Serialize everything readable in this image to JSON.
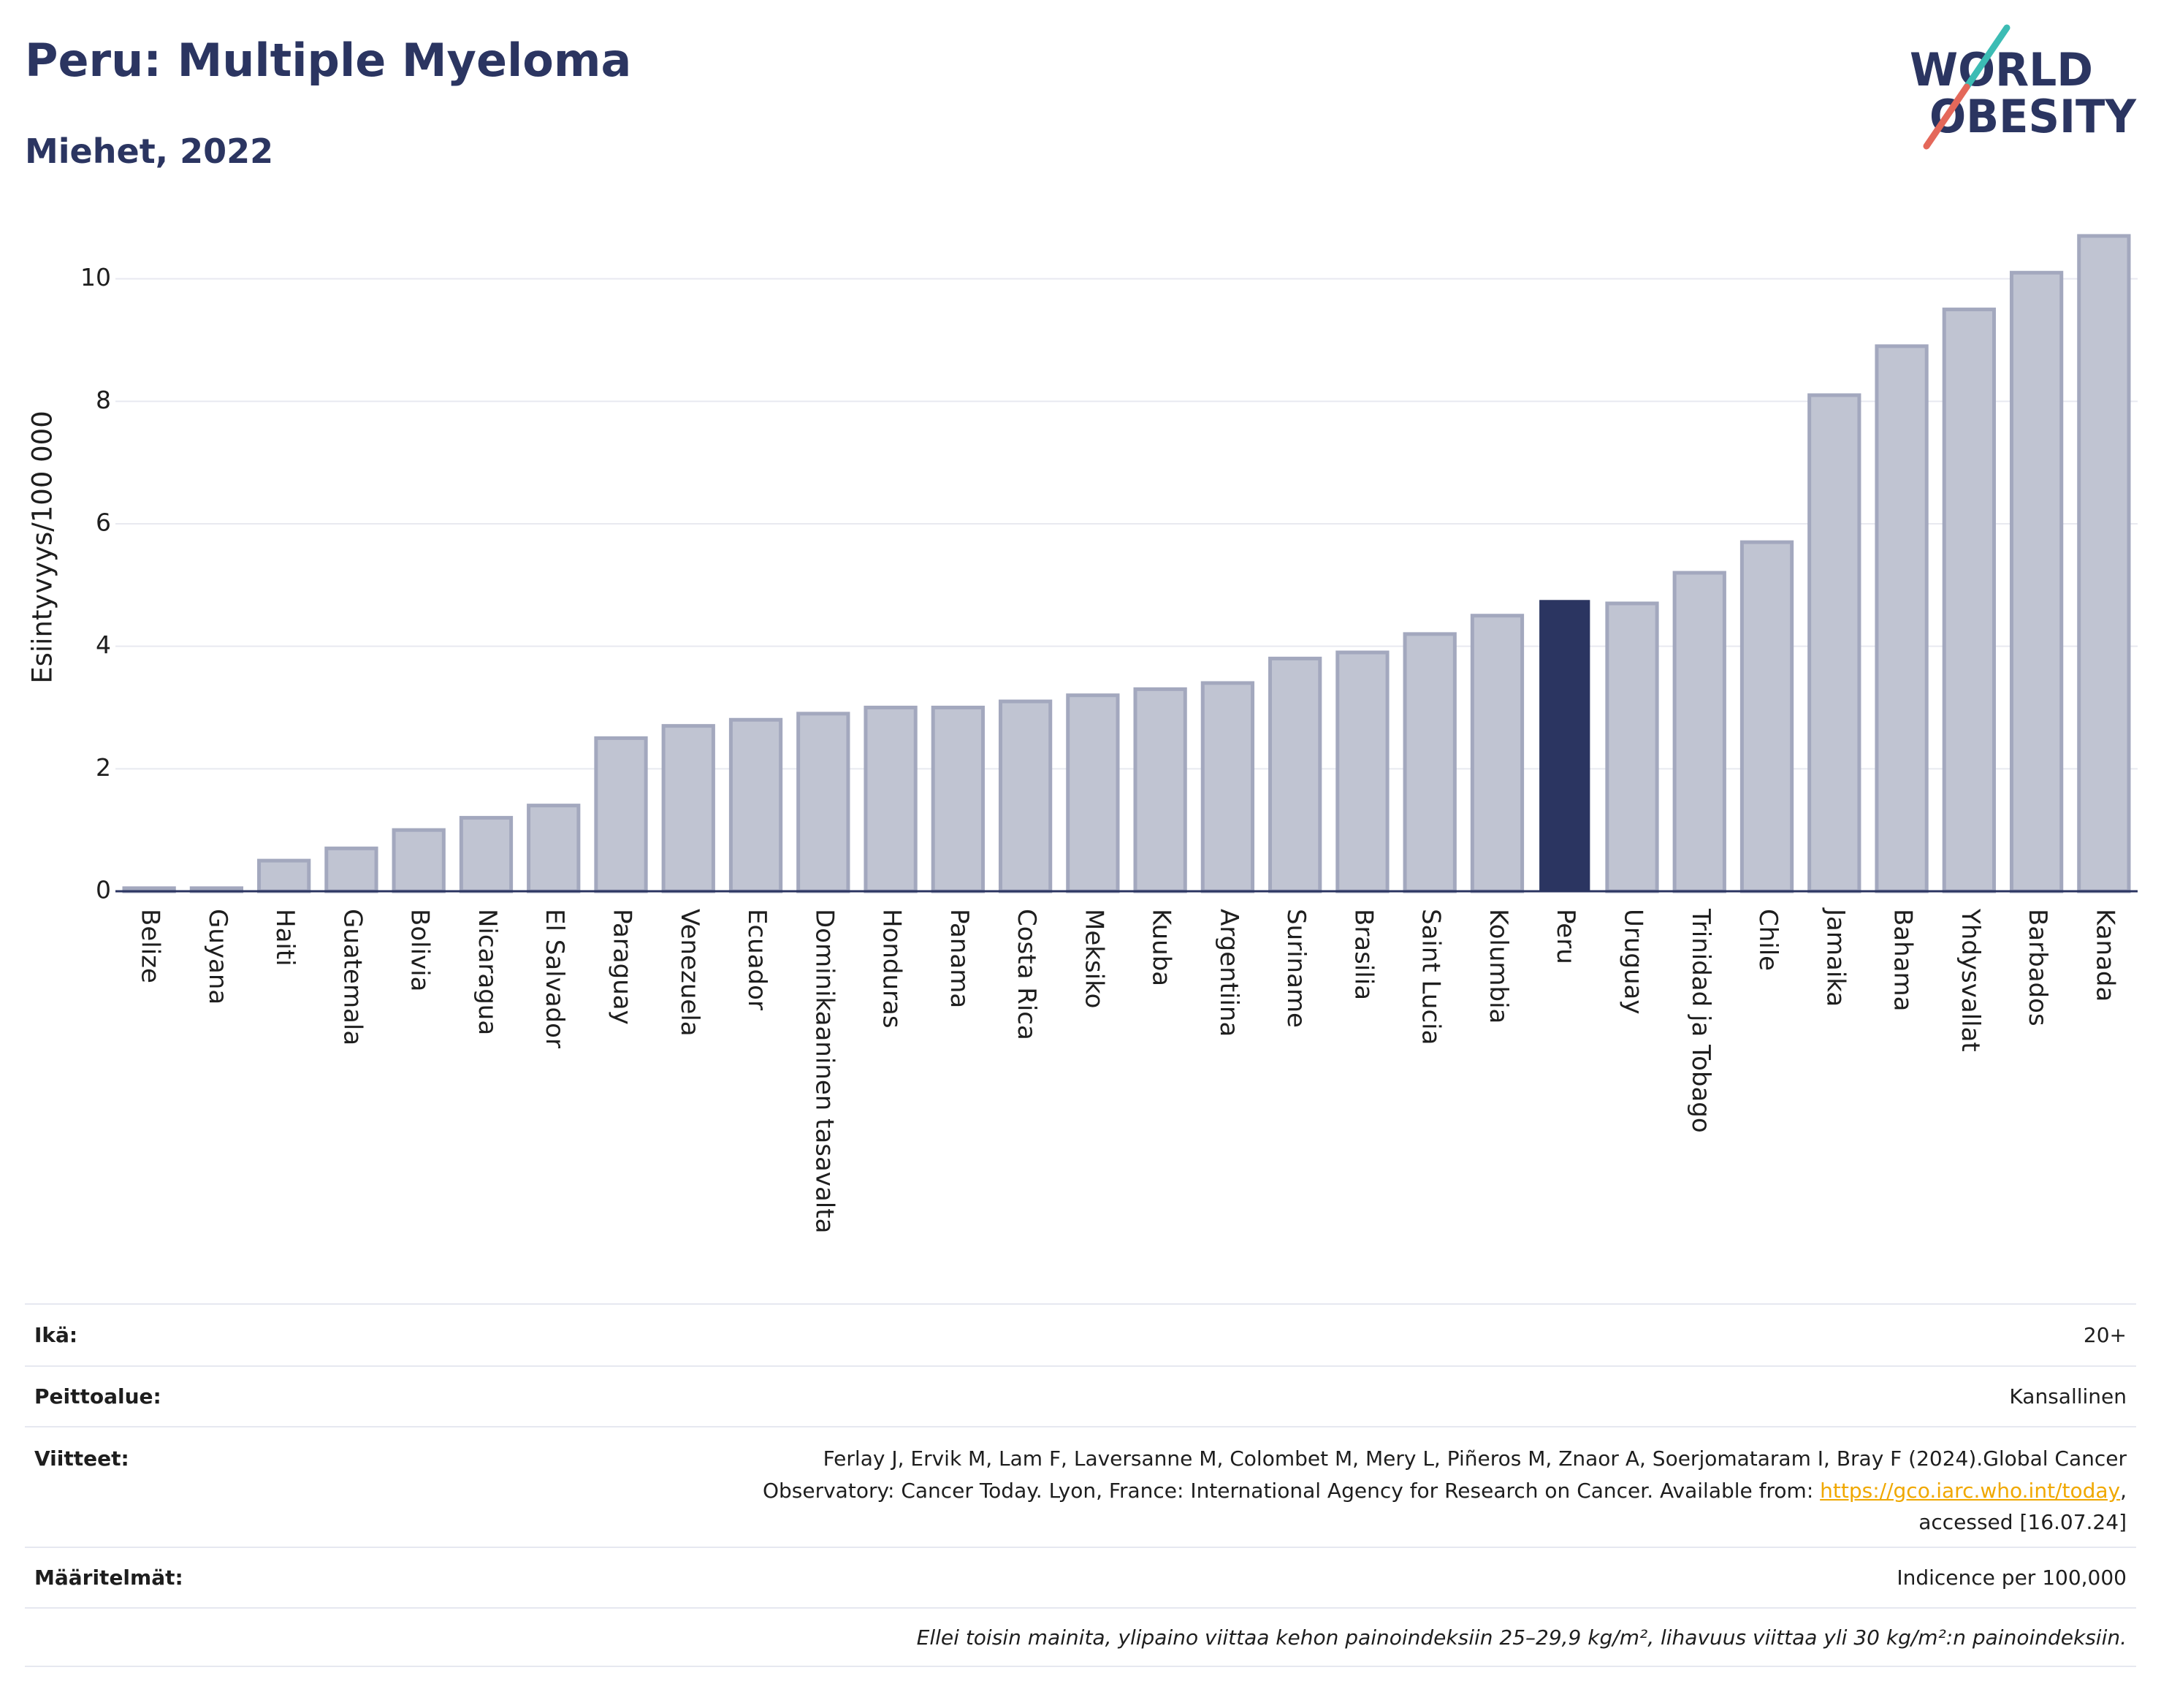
{
  "title": "Peru: Multiple Myeloma",
  "subtitle": "Miehet, 2022",
  "logo": {
    "line1": "WORLD",
    "line2": "OBESITY"
  },
  "colors": {
    "brand": "#2b3561",
    "logo_slash_top": "#3cbcb4",
    "logo_slash_bottom": "#e4685a",
    "link": "#f0a800"
  },
  "chart_data": {
    "type": "bar",
    "ylabel": "Esiintyvyys/100 000",
    "categories": [
      "Belize",
      "Guyana",
      "Haiti",
      "Guatemala",
      "Bolivia",
      "Nicaragua",
      "El Salvador",
      "Paraguay",
      "Venezuela",
      "Ecuador",
      "Dominikaaninen tasavalta",
      "Honduras",
      "Panama",
      "Costa Rica",
      "Meksiko",
      "Kuuba",
      "Argentiina",
      "Suriname",
      "Brasilia",
      "Saint Lucia",
      "Kolumbia",
      "Peru",
      "Uruguay",
      "Trinidad ja Tobago",
      "Chile",
      "Jamaika",
      "Bahama",
      "Yhdysvallat",
      "Barbados",
      "Kanada"
    ],
    "values": [
      0.05,
      0.05,
      0.5,
      0.7,
      1.0,
      1.2,
      1.4,
      2.5,
      2.7,
      2.8,
      2.9,
      3.0,
      3.0,
      3.1,
      3.2,
      3.3,
      3.4,
      3.8,
      3.9,
      4.2,
      4.5,
      4.75,
      4.7,
      5.2,
      5.7,
      8.1,
      8.9,
      9.5,
      10.1,
      10.7
    ],
    "highlight": "Peru",
    "ylim": [
      0,
      10.95
    ],
    "yticks": [
      0,
      2,
      4,
      6,
      8,
      10
    ],
    "grid": true,
    "legend": "none",
    "colors": {
      "bar": "#c0c4d2",
      "bar_border": "#a3a8be",
      "highlight": "#2b3561",
      "grid": "#e8e9f0",
      "axis": "#2b3561"
    }
  },
  "info": {
    "age": {
      "label": "Ikä:",
      "value": "20+"
    },
    "coverage": {
      "label": "Peittoalue:",
      "value": "Kansallinen"
    },
    "references": {
      "label": "Viitteet:",
      "line1": "Ferlay J, Ervik M, Lam F, Laversanne M, Colombet M, Mery L, Piñeros M, Znaor A, Soerjomataram I, Bray F (2024).Global Cancer",
      "line2": "Observatory: Cancer Today. Lyon, France: International Agency for Research on Cancer. Available from: ",
      "link": "https://gco.iarc.who.int/today",
      "line2_end": ",",
      "line3": "accessed [16.07.24]"
    },
    "definitions": {
      "label": "Määritelmät:",
      "value": "Indicence per 100,000"
    },
    "note": "Ellei toisin mainita, ylipaino viittaa kehon painoindeksiin 25–29,9 kg/m², lihavuus viittaa yli 30 kg/m²:n painoindeksiin."
  }
}
